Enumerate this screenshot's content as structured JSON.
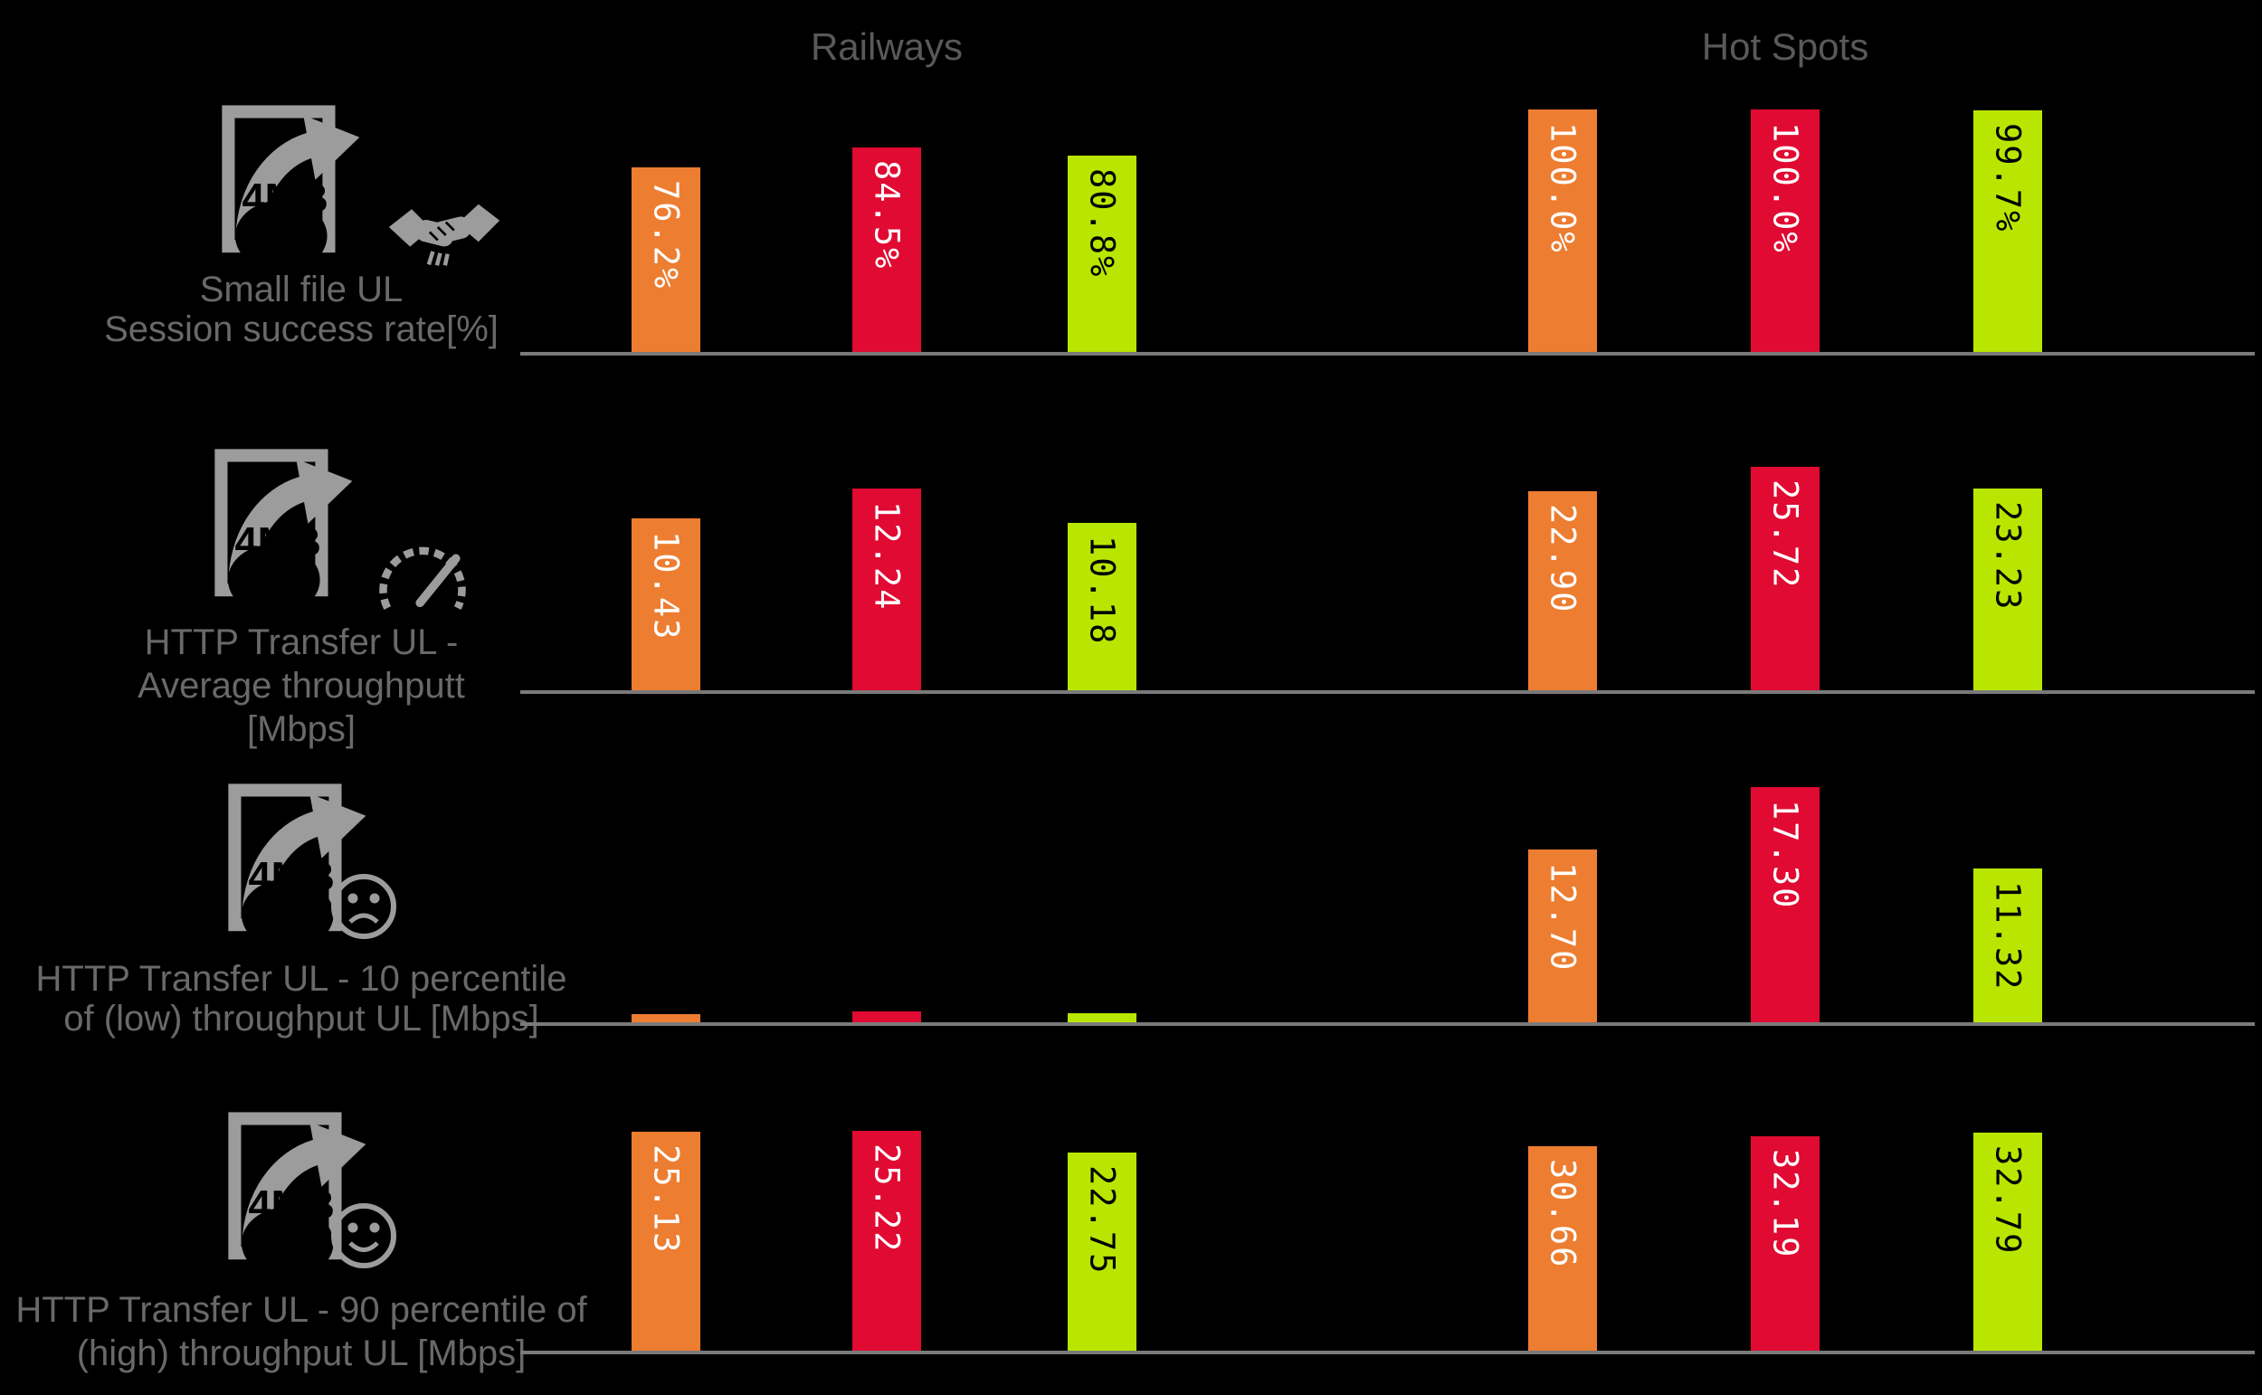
{
  "titles": {
    "railways": "Railways",
    "hotspots": "Hot Spots"
  },
  "colors": {
    "background": "#000000",
    "bar_orange": "#ED7D31",
    "bar_red": "#E00A32",
    "bar_green": "#B9E600",
    "axis": "#7A7A7A",
    "group_title_text": "#595959",
    "metric_label_text": "#696969",
    "icon_gray": "#9C9C9C",
    "bar_label_light": "#FFFFFF",
    "bar_label_dark": "#000000"
  },
  "chart_data": {
    "type": "bar",
    "groups": [
      "Railways",
      "Hot Spots"
    ],
    "series_colors": [
      "#ED7D31",
      "#E00A32",
      "#B9E600"
    ],
    "legend": "none",
    "grid": false,
    "rows": [
      {
        "metric_lines": [
          "Small file UL",
          "Session success rate[%]"
        ],
        "unit": "%",
        "icon": "file-upload-icon",
        "icon2": "handshake-icon",
        "railways": {
          "values": [
            76.2,
            84.5,
            80.8
          ],
          "labels": [
            "76.2%",
            "84.5%",
            "80.8%"
          ],
          "labels_visible": true
        },
        "hotspots": {
          "values": [
            100.0,
            100.0,
            99.7
          ],
          "labels": [
            "100.0%",
            "100.0%",
            "99.7%"
          ],
          "labels_visible": true
        },
        "ylim": [
          0,
          100
        ]
      },
      {
        "metric_lines": [
          "HTTP Transfer UL -",
          "Average throughputt",
          "[Mbps]"
        ],
        "unit": "Mbps",
        "icon": "file-upload-icon",
        "icon2": "speedometer-icon",
        "railways": {
          "values": [
            10.43,
            12.24,
            10.18
          ],
          "labels": [
            "10.43",
            "12.24",
            "10.18"
          ],
          "labels_visible": true
        },
        "hotspots": {
          "values": [
            22.9,
            25.72,
            23.23
          ],
          "labels": [
            "22.90",
            "25.72",
            "23.23"
          ],
          "labels_visible": true
        }
      },
      {
        "metric_lines": [
          "HTTP Transfer UL - 10 percentile",
          "of (low) throughput UL  [Mbps]"
        ],
        "unit": "Mbps",
        "icon": "file-upload-icon",
        "icon2": "sad-face-icon",
        "railways": {
          "values": [
            0.6,
            0.8,
            0.65
          ],
          "labels": [
            "",
            "",
            ""
          ],
          "labels_visible": false
        },
        "hotspots": {
          "values": [
            12.7,
            17.3,
            11.32
          ],
          "labels": [
            "12.70",
            "17.30",
            "11.32"
          ],
          "labels_visible": true
        }
      },
      {
        "metric_lines": [
          "HTTP Transfer UL - 90 percentile of",
          "(high) throughput UL [Mbps]"
        ],
        "unit": "Mbps",
        "icon": "file-upload-icon",
        "icon2": "happy-face-icon",
        "railways": {
          "values": [
            25.13,
            25.22,
            22.75
          ],
          "labels": [
            "25.13",
            "25.22",
            "22.75"
          ],
          "labels_visible": true
        },
        "hotspots": {
          "values": [
            30.66,
            32.19,
            32.79
          ],
          "labels": [
            "30.66",
            "32.19",
            "32.79"
          ],
          "labels_visible": true
        }
      }
    ]
  }
}
